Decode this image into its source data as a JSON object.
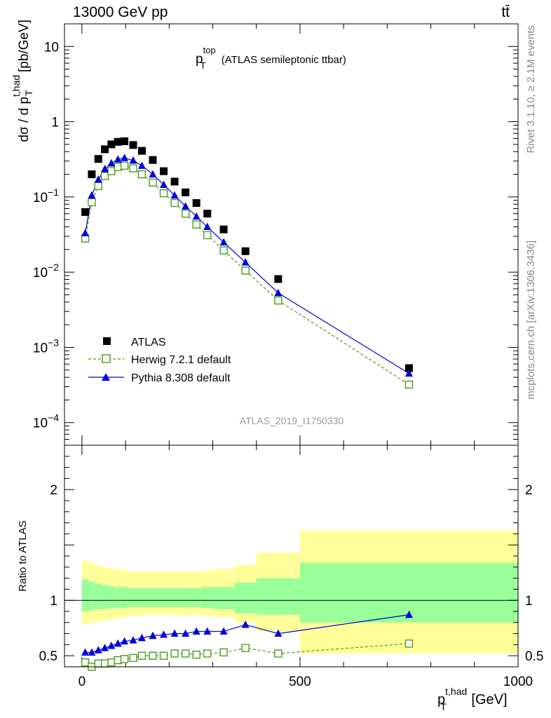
{
  "header": {
    "energy_label": "13000 GeV pp",
    "process_label": "tt̄"
  },
  "side": {
    "rivet_label": "Rivet 3.1.10, ≥ 2.1M events",
    "mcplots_label": "mcplots.cern.ch [arXiv:1306.3436]"
  },
  "analysis_label": "ATLAS_2019_I1750330",
  "chart_data": [
    {
      "type": "scatter",
      "panel": "main",
      "title_main": "p",
      "title_sup": "top",
      "title_sub": "T",
      "title_rest": " (ATLAS semileptonic ttbar)",
      "ylabel_main": "dσ / d p",
      "ylabel_sup": "t,had",
      "ylabel_sub": "T",
      "ylabel_unit": " [pb/GeV]",
      "yscale": "log",
      "xlim": [
        -40,
        1000
      ],
      "ylim": [
        5e-05,
        20
      ],
      "yticks": [
        {
          "value": 10,
          "label": "10"
        },
        {
          "value": 1,
          "label": "1"
        },
        {
          "value": 0.1,
          "label": "10",
          "exp": "−1"
        },
        {
          "value": 0.01,
          "label": "10",
          "exp": "−2"
        },
        {
          "value": 0.001,
          "label": "10",
          "exp": "−3"
        },
        {
          "value": 0.0001,
          "label": "10",
          "exp": "−4"
        }
      ],
      "legend_position": "lower-left",
      "series": [
        {
          "name": "ATLAS",
          "style": "data",
          "x": [
            7.5,
            22.5,
            37.5,
            52.5,
            67.5,
            82.5,
            97.5,
            117.5,
            137.5,
            162.5,
            187.5,
            212.5,
            237.5,
            262.5,
            287.5,
            325,
            375,
            450,
            750
          ],
          "values": [
            0.063,
            0.2,
            0.32,
            0.43,
            0.5,
            0.54,
            0.55,
            0.49,
            0.41,
            0.31,
            0.22,
            0.16,
            0.115,
            0.083,
            0.06,
            0.037,
            0.019,
            0.0081,
            0.00053
          ]
        },
        {
          "name": "Herwig 7.2.1 default",
          "style": "herwig",
          "x": [
            7.5,
            22.5,
            37.5,
            52.5,
            67.5,
            82.5,
            97.5,
            117.5,
            137.5,
            162.5,
            187.5,
            212.5,
            237.5,
            262.5,
            287.5,
            325,
            375,
            450,
            750
          ],
          "values": [
            0.028,
            0.085,
            0.14,
            0.19,
            0.22,
            0.25,
            0.26,
            0.24,
            0.2,
            0.155,
            0.112,
            0.083,
            0.06,
            0.043,
            0.031,
            0.0195,
            0.0105,
            0.0042,
            0.00032
          ]
        },
        {
          "name": "Pythia 8.308 default",
          "style": "pythia",
          "x": [
            7.5,
            22.5,
            37.5,
            52.5,
            67.5,
            82.5,
            97.5,
            117.5,
            137.5,
            162.5,
            187.5,
            212.5,
            237.5,
            262.5,
            287.5,
            325,
            375,
            450,
            750
          ],
          "values": [
            0.033,
            0.105,
            0.17,
            0.235,
            0.28,
            0.315,
            0.33,
            0.305,
            0.26,
            0.2,
            0.145,
            0.105,
            0.075,
            0.055,
            0.04,
            0.025,
            0.0135,
            0.0053,
            0.00045
          ]
        }
      ]
    },
    {
      "type": "scatter",
      "panel": "ratio",
      "ylabel": "Ratio to ATLAS",
      "xlabel_main": "p",
      "xlabel_sup": "t,had",
      "xlabel_sub": "T",
      "xlabel_unit": " [GeV]",
      "xlim": [
        -40,
        1000
      ],
      "ylim": [
        0.4,
        2.4
      ],
      "xticks": [
        0,
        500,
        1000
      ],
      "yticks": [
        0.5,
        1,
        2
      ],
      "bands": {
        "edges": [
          0,
          15,
          30,
          45,
          60,
          75,
          90,
          105,
          130,
          145,
          180,
          195,
          230,
          245,
          275,
          300,
          350,
          400,
          500,
          1000
        ],
        "yellow_low": [
          0.79,
          0.8,
          0.81,
          0.82,
          0.83,
          0.84,
          0.85,
          0.86,
          0.86,
          0.87,
          0.87,
          0.87,
          0.86,
          0.87,
          0.86,
          0.85,
          0.8,
          0.72,
          0.52
        ],
        "yellow_high": [
          1.36,
          1.34,
          1.32,
          1.3,
          1.29,
          1.28,
          1.27,
          1.26,
          1.26,
          1.26,
          1.26,
          1.26,
          1.26,
          1.26,
          1.27,
          1.28,
          1.32,
          1.43,
          1.63
        ],
        "green_low": [
          0.9,
          0.91,
          0.92,
          0.92,
          0.93,
          0.93,
          0.93,
          0.94,
          0.94,
          0.94,
          0.94,
          0.94,
          0.94,
          0.94,
          0.93,
          0.92,
          0.88,
          0.87,
          0.8
        ],
        "green_high": [
          1.19,
          1.17,
          1.15,
          1.14,
          1.13,
          1.12,
          1.12,
          1.11,
          1.11,
          1.11,
          1.11,
          1.11,
          1.11,
          1.11,
          1.12,
          1.12,
          1.16,
          1.2,
          1.34
        ]
      },
      "series": [
        {
          "name": "Herwig 7.2.1 default",
          "style": "herwig",
          "x": [
            7.5,
            22.5,
            37.5,
            52.5,
            67.5,
            82.5,
            97.5,
            117.5,
            137.5,
            162.5,
            187.5,
            212.5,
            237.5,
            262.5,
            287.5,
            325,
            375,
            450,
            750
          ],
          "values": [
            0.44,
            0.4,
            0.43,
            0.43,
            0.44,
            0.46,
            0.47,
            0.48,
            0.5,
            0.5,
            0.5,
            0.52,
            0.52,
            0.51,
            0.52,
            0.53,
            0.57,
            0.52,
            0.61
          ]
        },
        {
          "name": "Pythia 8.308 default",
          "style": "pythia",
          "x": [
            7.5,
            22.5,
            37.5,
            52.5,
            67.5,
            82.5,
            97.5,
            117.5,
            137.5,
            162.5,
            187.5,
            212.5,
            237.5,
            262.5,
            287.5,
            325,
            375,
            450,
            750
          ],
          "values": [
            0.53,
            0.53,
            0.55,
            0.57,
            0.59,
            0.61,
            0.63,
            0.64,
            0.66,
            0.68,
            0.69,
            0.7,
            0.7,
            0.72,
            0.72,
            0.72,
            0.78,
            0.7,
            0.87
          ]
        }
      ]
    }
  ],
  "colors": {
    "data": "#000000",
    "herwig": "#4a9a1b",
    "pythia": "#0000dd",
    "band_yellow": "#ffff99",
    "band_green": "#99ff99",
    "side_text": "#888888"
  }
}
